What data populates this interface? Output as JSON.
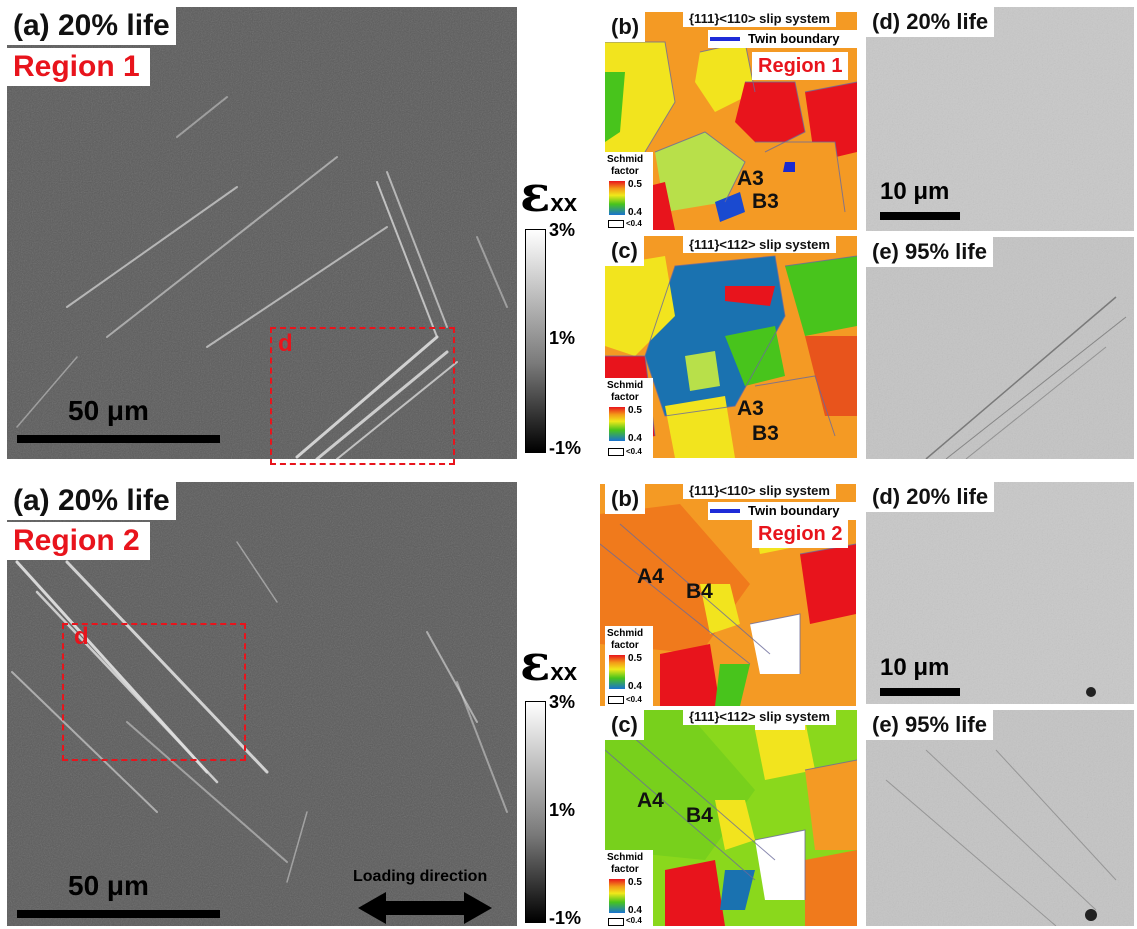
{
  "region1": {
    "strain": {
      "label_top": "(a) 20% life",
      "label_region": "Region 1",
      "box_label": "d",
      "scale": "50 μm"
    },
    "colorbar": {
      "symbol": "ε",
      "sub": "xx",
      "max": "3%",
      "mid": "1%",
      "min": "-1%"
    },
    "ebsd_110": {
      "label": "(b)",
      "title": "{111}<110> slip system",
      "legend": "Twin boundary",
      "region": "Region 1",
      "g1": "A3",
      "g2": "B3",
      "schmid_title_1": "Schmid",
      "schmid_title_2": "factor",
      "s_max": "0.5",
      "s_min": "0.4",
      "s_low": "<0.4"
    },
    "ebsd_112": {
      "label": "(c)",
      "title": "{111}<112> slip system",
      "g1": "A3",
      "g2": "B3",
      "schmid_title_1": "Schmid",
      "schmid_title_2": "factor",
      "s_max": "0.5",
      "s_min": "0.4",
      "s_low": "<0.4"
    },
    "sem_20": {
      "label": "(d) 20% life",
      "scale": "10 μm"
    },
    "sem_95": {
      "label": "(e) 95% life"
    }
  },
  "region2": {
    "strain": {
      "label_top": "(a) 20% life",
      "label_region": "Region 2",
      "box_label": "d",
      "scale": "50 μm"
    },
    "colorbar": {
      "symbol": "ε",
      "sub": "xx",
      "max": "3%",
      "mid": "1%",
      "min": "-1%"
    },
    "ebsd_110": {
      "label": "(b)",
      "title": "{111}<110> slip system",
      "legend": "Twin boundary",
      "region": "Region 2",
      "g1": "A4",
      "g2": "B4",
      "schmid_title_1": "Schmid",
      "schmid_title_2": "factor",
      "s_max": "0.5",
      "s_min": "0.4",
      "s_low": "<0.4"
    },
    "ebsd_112": {
      "label": "(c)",
      "title": "{111}<112> slip system",
      "g1": "A4",
      "g2": "B4",
      "schmid_title_1": "Schmid",
      "schmid_title_2": "factor",
      "s_max": "0.5",
      "s_min": "0.4",
      "s_low": "<0.4"
    },
    "sem_20": {
      "label": "(d) 20% life",
      "scale": "10 μm"
    },
    "sem_95": {
      "label": "(e) 95% life"
    }
  },
  "loading": {
    "label": "Loading direction"
  },
  "colors": {
    "accent_red": "#e8141c",
    "twin_blue": "#1e2bd8"
  }
}
